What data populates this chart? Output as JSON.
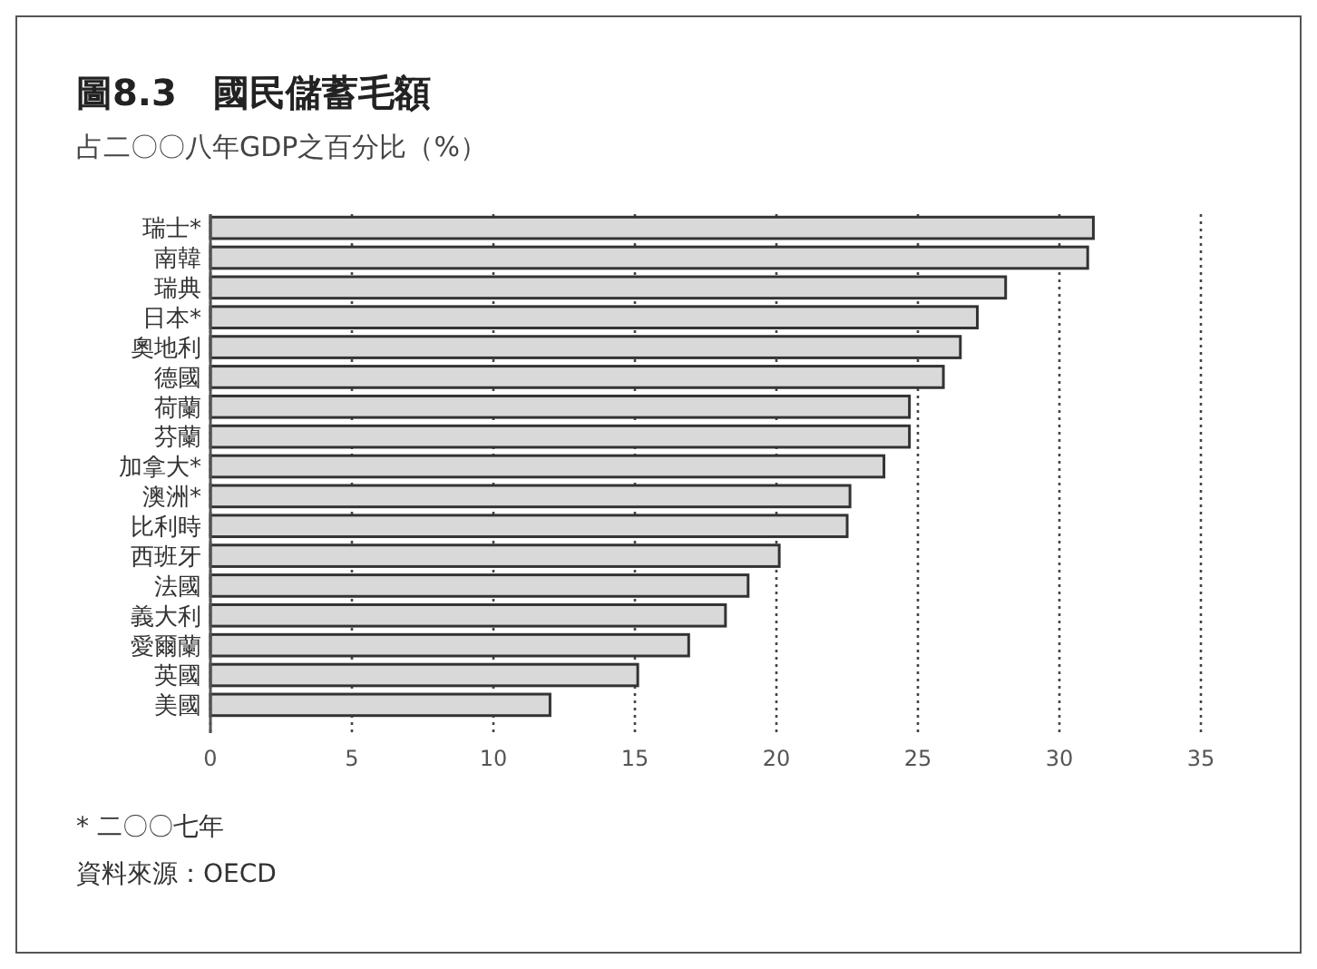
{
  "chart_data": {
    "type": "bar",
    "orientation": "horizontal",
    "title": "圖8.3　國民儲蓄毛額",
    "subtitle": "占二〇〇八年GDP之百分比（%）",
    "categories": [
      "瑞士*",
      "南韓",
      "瑞典",
      "日本*",
      "奧地利",
      "德國",
      "荷蘭",
      "芬蘭",
      "加拿大*",
      "澳洲*",
      "比利時",
      "西班牙",
      "法國",
      "義大利",
      "愛爾蘭",
      "英國",
      "美國"
    ],
    "values": [
      31.2,
      31.0,
      28.1,
      27.1,
      26.5,
      25.9,
      24.7,
      24.7,
      23.8,
      22.6,
      22.5,
      20.1,
      19.0,
      18.2,
      16.9,
      15.1,
      12.0
    ],
    "color": "#d9d9d9",
    "xlim": [
      0,
      35
    ],
    "xticks": [
      0,
      5,
      10,
      15,
      20,
      25,
      30,
      35
    ],
    "grid": "x",
    "annotations": [
      "* 二〇〇七年",
      "資料來源：OECD"
    ]
  }
}
